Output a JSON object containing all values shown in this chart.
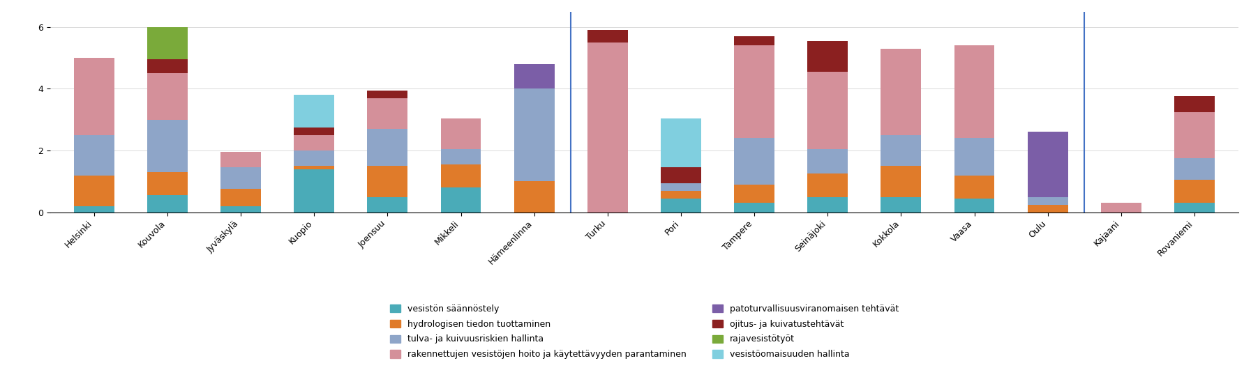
{
  "categories": [
    "Helsinki",
    "Kouvola",
    "Jyväskylä",
    "Kuopio",
    "Joensuu",
    "Mikkeli",
    "Hämeenlinna",
    "Turku",
    "Pori",
    "Tampere",
    "Seinäjoki",
    "Kokkola",
    "Vaasa",
    "Oulu",
    "Kajaani",
    "Rovaniemi"
  ],
  "series": {
    "vesistön säännöstely": [
      0.2,
      0.55,
      0.2,
      1.4,
      0.5,
      0.8,
      0.0,
      0.0,
      0.45,
      0.3,
      0.5,
      0.5,
      0.45,
      0.0,
      0.0,
      0.3
    ],
    "hydrologisen tiedon tuottaminen": [
      1.0,
      0.75,
      0.55,
      0.1,
      1.0,
      0.75,
      1.0,
      0.0,
      0.25,
      0.6,
      0.75,
      1.0,
      0.75,
      0.25,
      0.0,
      0.75
    ],
    "tulva- ja kuivuusriskien hallinta": [
      1.3,
      1.7,
      0.7,
      0.5,
      1.2,
      0.5,
      3.0,
      0.0,
      0.25,
      1.5,
      0.8,
      1.0,
      1.2,
      0.25,
      0.0,
      0.7
    ],
    "rakennettujen vesistöjen hoito ja käytettävyyden parantaminen": [
      2.5,
      1.5,
      0.5,
      0.5,
      1.0,
      1.0,
      0.0,
      5.5,
      0.0,
      3.0,
      2.5,
      2.8,
      3.0,
      0.0,
      0.3,
      1.5
    ],
    "patoturvallisuusviranomaisen tehtävät": [
      0.0,
      0.0,
      0.0,
      0.0,
      0.0,
      0.0,
      0.8,
      0.0,
      0.0,
      0.0,
      0.0,
      0.0,
      0.0,
      2.1,
      0.0,
      0.0
    ],
    "ojitus- ja kuivatustehtävät": [
      0.0,
      0.45,
      0.0,
      0.25,
      0.25,
      0.0,
      0.0,
      0.4,
      0.5,
      0.3,
      1.0,
      0.0,
      0.0,
      0.0,
      0.0,
      0.5
    ],
    "rajavesistötyöt": [
      0.0,
      1.05,
      0.0,
      0.0,
      0.0,
      0.0,
      0.0,
      0.0,
      0.0,
      0.0,
      0.0,
      0.0,
      0.0,
      0.0,
      0.0,
      0.0
    ],
    "vesistöomaisuuden hallinta": [
      0.0,
      0.0,
      0.0,
      1.05,
      0.0,
      0.0,
      0.0,
      0.0,
      1.6,
      0.0,
      0.0,
      0.0,
      0.0,
      0.0,
      0.0,
      0.0
    ]
  },
  "colors": {
    "vesistön säännöstely": "#4AABB8",
    "hydrologisen tiedon tuottaminen": "#E07B2A",
    "tulva- ja kuivuusriskien hallinta": "#8EA5C8",
    "rakennettujen vesistöjen hoito ja käytettävyyden parantaminen": "#D4909A",
    "patoturvallisuusviranomaisen tehtävät": "#7B5EA7",
    "ojitus- ja kuivatustehtävät": "#8B2020",
    "rajavesistötyöt": "#7AAA3A",
    "vesistöomaisuuden hallinta": "#80CFDF"
  },
  "vlines": [
    6.5,
    13.5
  ],
  "ylim": [
    0,
    6.5
  ],
  "yticks": [
    0,
    2,
    4,
    6
  ],
  "background_color": "#FFFFFF",
  "bar_width": 0.55,
  "series_order": [
    "vesistön säännöstely",
    "hydrologisen tiedon tuottaminen",
    "tulva- ja kuivuusriskien hallinta",
    "rakennettujen vesistöjen hoito ja käytettävyyden parantaminen",
    "patoturvallisuusviranomaisen tehtävät",
    "ojitus- ja kuivatustehtävät",
    "rajavesistötyöt",
    "vesistöomaisuuden hallinta"
  ],
  "legend_left": [
    "vesistön säännöstely",
    "tulva- ja kuivuusriskien hallinta",
    "patoturvallisuusviranomaisen tehtävät",
    "rajavesistötyöt"
  ],
  "legend_right": [
    "hydrologisen tiedon tuottaminen",
    "rakennettujen vesistöjen hoito ja käytettävyyden parantaminen",
    "ojitus- ja kuivatustehtävät",
    "vesistöomaisuuden hallinta"
  ]
}
